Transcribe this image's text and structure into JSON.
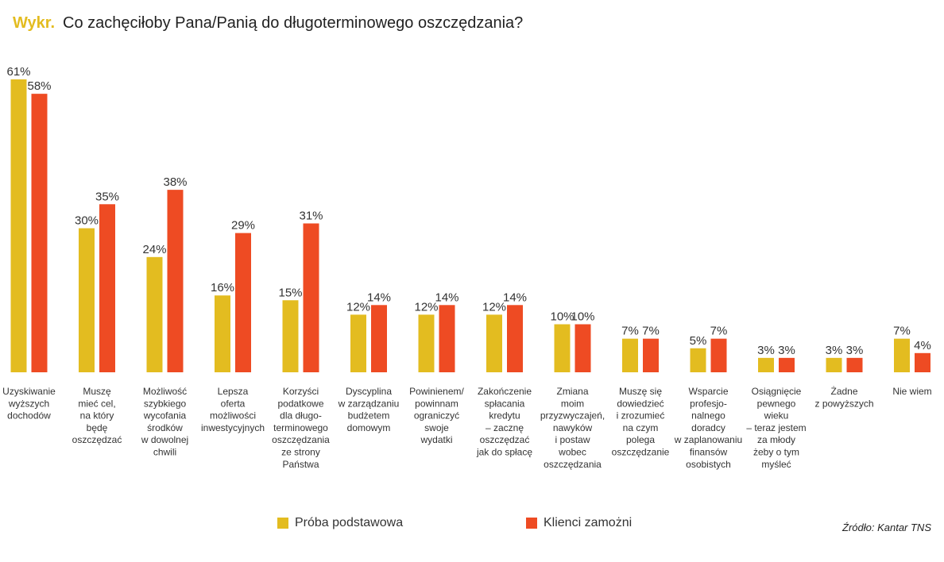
{
  "title": {
    "prefix": "Wykr.",
    "text": "Co zachęciłoby Pana/Panią do długoterminowego oszczędzania?"
  },
  "source": "Źródło: Kantar TNS",
  "colors": {
    "accent": "#E3BC20",
    "series1": "#E3BC20",
    "series2": "#EE4B23"
  },
  "chart_data": {
    "type": "bar",
    "value_suffix": "%",
    "ylim": [
      0,
      61
    ],
    "grid": false,
    "legend_position": "bottom",
    "categories": [
      [
        "Uzyskiwanie",
        "wyższych",
        "dochodów"
      ],
      [
        "Muszę",
        "mieć cel,",
        "na który",
        "będę",
        "oszczędzać"
      ],
      [
        "Możliwość",
        "szybkiego",
        "wycofania",
        "środków",
        "w dowolnej",
        "chwili"
      ],
      [
        "Lepsza",
        "oferta",
        "możliwości",
        "inwestycyjnych"
      ],
      [
        "Korzyści",
        "podatkowe",
        "dla długo-",
        "terminowego",
        "oszczędzania",
        "ze strony",
        "Państwa"
      ],
      [
        "Dyscyplina",
        "w zarządzaniu",
        "budżetem",
        "domowym"
      ],
      [
        "Powinienem/",
        "powinnam",
        "ograniczyć",
        "swoje",
        "wydatki"
      ],
      [
        "Zakończenie",
        "spłacania",
        "kredytu",
        "– zacznę",
        "oszczędzać",
        "jak do spłacę"
      ],
      [
        "Zmiana",
        "moim",
        "przyzwyczajeń,",
        "nawyków",
        "i postaw",
        "wobec",
        "oszczędzania"
      ],
      [
        "Muszę się",
        "dowiedzieć",
        "i zrozumieć",
        "na czym",
        "polega",
        "oszczędzanie"
      ],
      [
        "Wsparcie",
        "profesjo-",
        "nalnego",
        "doradcy",
        "w zaplanowaniu",
        "finansów",
        "osobistych"
      ],
      [
        "Osiągnięcie",
        "pewnego",
        "wieku",
        "– teraz jestem",
        "za młody",
        "żeby o tym",
        "myśleć"
      ],
      [
        "Żadne",
        "z powyższych"
      ],
      [
        "Nie wiem"
      ]
    ],
    "series": [
      {
        "name": "Próba podstawowa",
        "color": "#E3BC20",
        "values": [
          61,
          30,
          24,
          16,
          15,
          12,
          12,
          12,
          10,
          7,
          5,
          3,
          3,
          7
        ]
      },
      {
        "name": "Klienci zamożni",
        "color": "#EE4B23",
        "values": [
          58,
          35,
          38,
          29,
          31,
          14,
          14,
          14,
          10,
          7,
          7,
          3,
          3,
          4
        ]
      }
    ]
  }
}
